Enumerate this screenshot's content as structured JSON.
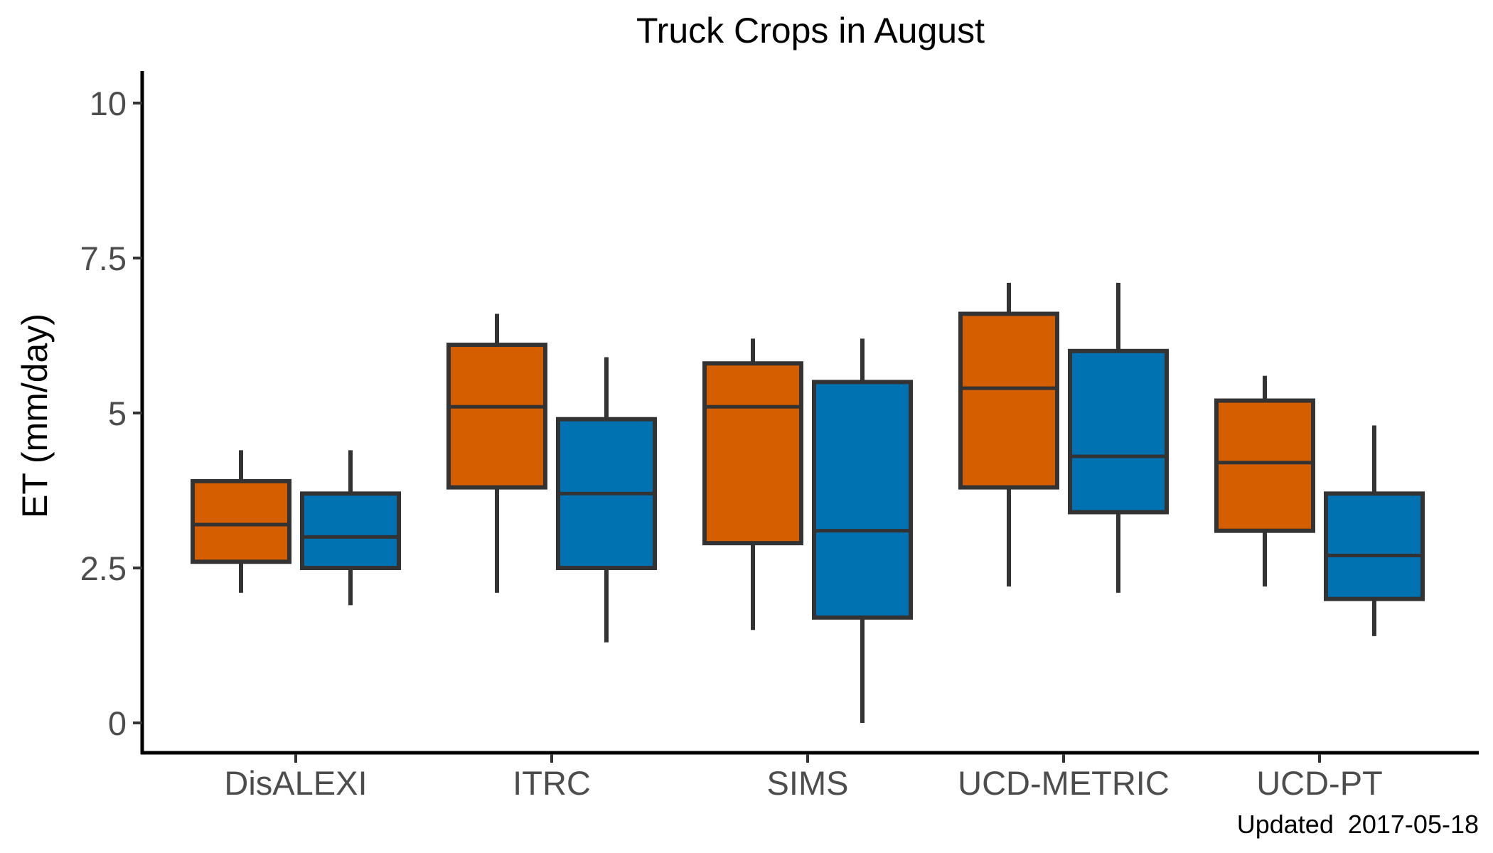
{
  "chart_data": {
    "type": "box",
    "title": "Truck Crops in August",
    "xlabel": "",
    "ylabel": "ET (mm/day)",
    "ylim": [
      -0.5,
      10.5
    ],
    "y_ticks": [
      "0",
      "2.5",
      "5",
      "7.5",
      "10"
    ],
    "y_tick_values": [
      0,
      2.5,
      5,
      7.5,
      10
    ],
    "categories": [
      "DisALEXI",
      "ITRC",
      "SIMS",
      "UCD-METRIC",
      "UCD-PT"
    ],
    "grid": false,
    "legend": "none",
    "series": [
      {
        "color": "#D55E00",
        "boxes": [
          {
            "min": 2.1,
            "q1": 2.6,
            "median": 3.2,
            "q3": 3.9,
            "max": 4.4
          },
          {
            "min": 2.1,
            "q1": 3.8,
            "median": 5.1,
            "q3": 6.1,
            "max": 6.6
          },
          {
            "min": 1.5,
            "q1": 2.9,
            "median": 5.1,
            "q3": 5.8,
            "max": 6.2
          },
          {
            "min": 2.2,
            "q1": 3.8,
            "median": 5.4,
            "q3": 6.6,
            "max": 7.1
          },
          {
            "min": 2.2,
            "q1": 3.1,
            "median": 4.2,
            "q3": 5.2,
            "max": 5.6
          }
        ]
      },
      {
        "color": "#0072B2",
        "boxes": [
          {
            "min": 1.9,
            "q1": 2.5,
            "median": 3.0,
            "q3": 3.7,
            "max": 4.4
          },
          {
            "min": 1.3,
            "q1": 2.5,
            "median": 3.7,
            "q3": 4.9,
            "max": 5.9
          },
          {
            "min": 0.0,
            "q1": 1.7,
            "median": 3.1,
            "q3": 5.5,
            "max": 6.2
          },
          {
            "min": 2.1,
            "q1": 3.4,
            "median": 4.3,
            "q3": 6.0,
            "max": 7.1
          },
          {
            "min": 1.4,
            "q1": 2.0,
            "median": 2.7,
            "q3": 3.7,
            "max": 4.8
          }
        ]
      }
    ],
    "caption": "Updated  2017-05-18"
  }
}
